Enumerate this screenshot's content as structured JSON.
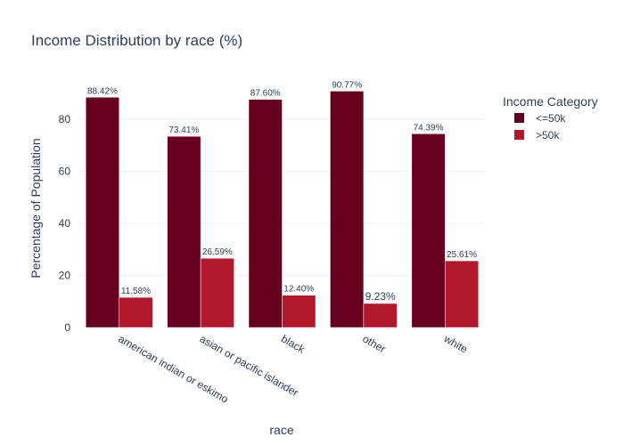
{
  "chart_data": {
    "type": "bar",
    "title": "Income Distribution by race (%)",
    "xlabel": "race",
    "ylabel": "Percentage of Population",
    "categories": [
      "american indian or eskimo",
      "asian or pacific islander",
      "black",
      "other",
      "white"
    ],
    "series": [
      {
        "name": "<=50k",
        "values": [
          88.42,
          73.41,
          87.6,
          90.77,
          74.39
        ],
        "labels": [
          "88.42%",
          "73.41%",
          "87.60%",
          "90.77%",
          "74.39%"
        ],
        "color": "#67001f"
      },
      {
        "name": ">50k",
        "values": [
          11.58,
          26.59,
          12.4,
          9.23,
          25.61
        ],
        "labels": [
          "11.58%",
          "26.59%",
          "12.40%",
          "9.23%",
          "25.61%"
        ],
        "color": "#b2182b"
      }
    ],
    "ylim": [
      0,
      95
    ],
    "yticks": [
      0,
      20,
      40,
      60,
      80
    ],
    "grid": true,
    "legend": {
      "title": "Income Category",
      "placement": "top-right"
    }
  }
}
